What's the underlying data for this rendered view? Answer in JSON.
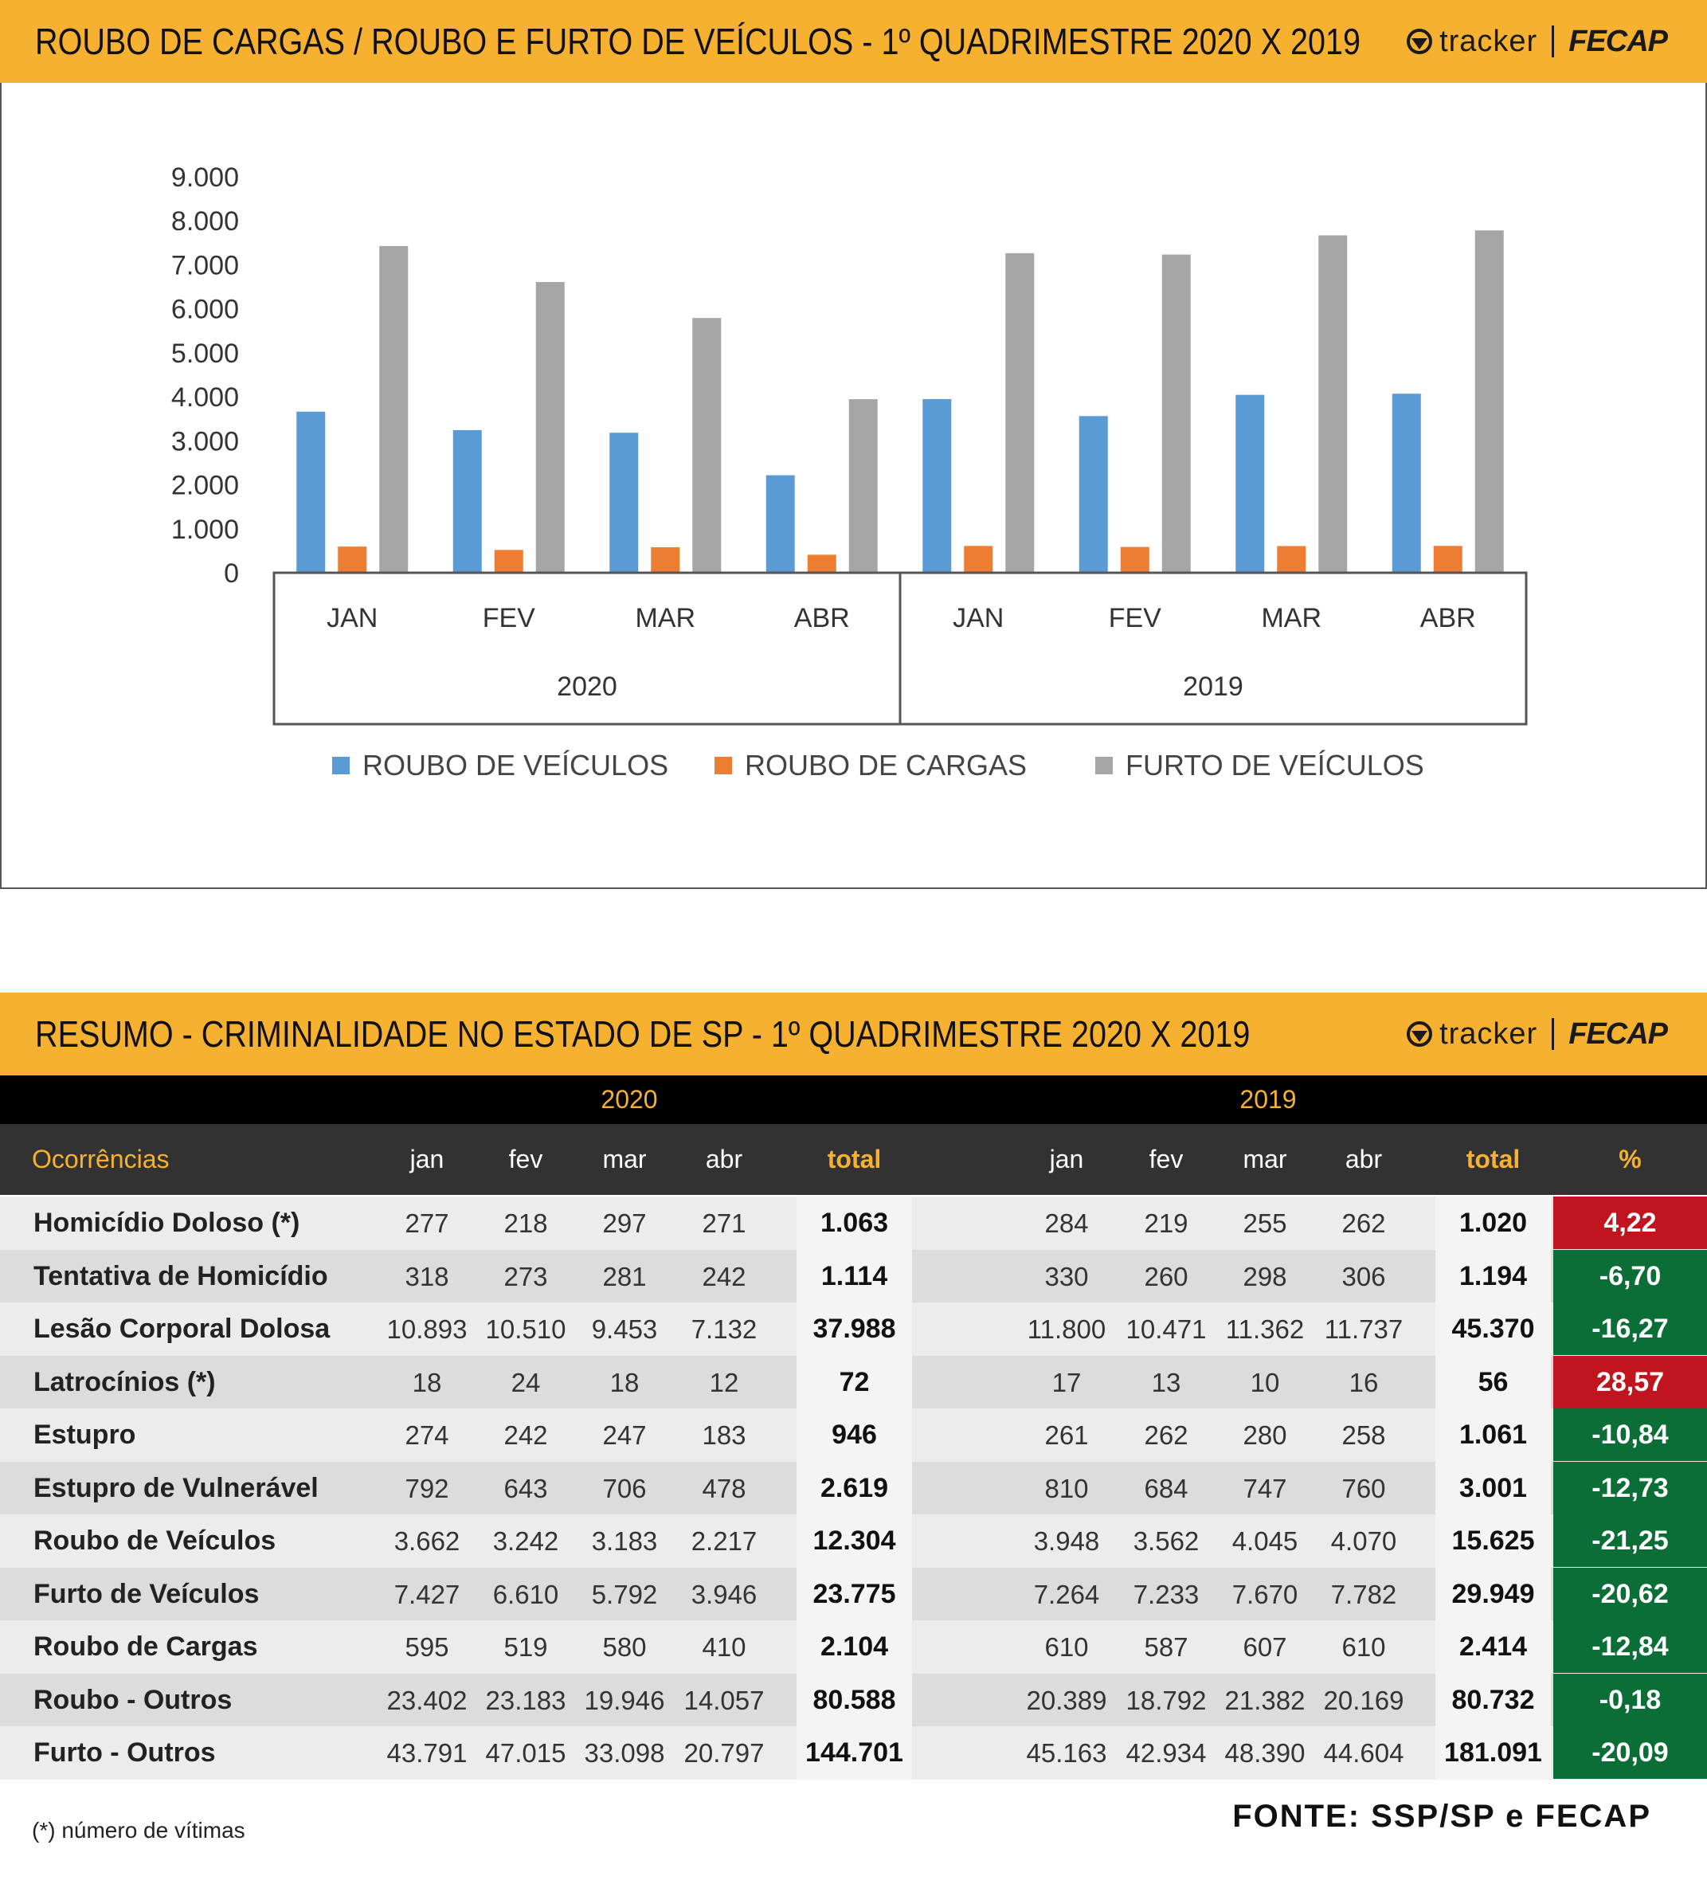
{
  "chart_header": {
    "title": "ROUBO DE CARGAS / ROUBO E FURTO DE VEÍCULOS - 1º QUADRIMESTRE 2020 X 2019",
    "logo_tracker": "tracker",
    "logo_fecap": "FECAP"
  },
  "table_header": {
    "title": "RESUMO - CRIMINALIDADE NO ESTADO DE SP - 1º QUADRIMESTRE 2020 X 2019",
    "logo_tracker": "tracker",
    "logo_fecap": "FECAP"
  },
  "colors": {
    "header_bg": "#f7b131",
    "roubo_veiculos": "#5b9bd5",
    "roubo_cargas": "#ed7d31",
    "furto_veiculos": "#a5a5a5",
    "pct_positive": "#c0151f",
    "pct_negative": "#0b6e36"
  },
  "chart_data": {
    "type": "bar",
    "groups": [
      {
        "label": "2020",
        "categories": [
          "JAN",
          "FEV",
          "MAR",
          "ABR"
        ]
      },
      {
        "label": "2019",
        "categories": [
          "JAN",
          "FEV",
          "MAR",
          "ABR"
        ]
      }
    ],
    "categories": [
      "JAN",
      "FEV",
      "MAR",
      "ABR",
      "JAN",
      "FEV",
      "MAR",
      "ABR"
    ],
    "series": [
      {
        "name": "ROUBO DE VEÍCULOS",
        "color": "#5b9bd5",
        "values": [
          3662,
          3242,
          3183,
          2217,
          3948,
          3562,
          4045,
          4070
        ]
      },
      {
        "name": "ROUBO DE CARGAS",
        "color": "#ed7d31",
        "values": [
          595,
          519,
          580,
          410,
          610,
          587,
          607,
          610
        ]
      },
      {
        "name": "FURTO DE VEÍCULOS",
        "color": "#a5a5a5",
        "values": [
          7427,
          6610,
          5792,
          3946,
          7264,
          7233,
          7670,
          7782
        ]
      }
    ],
    "yticks": [
      "0",
      "1.000",
      "2.000",
      "3.000",
      "4.000",
      "5.000",
      "6.000",
      "7.000",
      "8.000",
      "9.000"
    ],
    "ylim": [
      0,
      9000
    ],
    "legend_position": "bottom",
    "grid": false
  },
  "table": {
    "years": [
      "2020",
      "2019"
    ],
    "columns": {
      "label": "Ocorrências",
      "months": [
        "jan",
        "fev",
        "mar",
        "abr"
      ],
      "total": "total",
      "pct": "%"
    },
    "rows": [
      {
        "name": "Homicídio Doloso (*)",
        "y2020": [
          "277",
          "218",
          "297",
          "271"
        ],
        "t2020": "1.063",
        "y2019": [
          "284",
          "219",
          "255",
          "262"
        ],
        "t2019": "1.020",
        "pct": "4,22",
        "positive": true
      },
      {
        "name": "Tentativa de Homicídio",
        "y2020": [
          "318",
          "273",
          "281",
          "242"
        ],
        "t2020": "1.114",
        "y2019": [
          "330",
          "260",
          "298",
          "306"
        ],
        "t2019": "1.194",
        "pct": "-6,70",
        "positive": false
      },
      {
        "name": "Lesão Corporal Dolosa",
        "y2020": [
          "10.893",
          "10.510",
          "9.453",
          "7.132"
        ],
        "t2020": "37.988",
        "y2019": [
          "11.800",
          "10.471",
          "11.362",
          "11.737"
        ],
        "t2019": "45.370",
        "pct": "-16,27",
        "positive": false
      },
      {
        "name": "Latrocínios (*)",
        "y2020": [
          "18",
          "24",
          "18",
          "12"
        ],
        "t2020": "72",
        "y2019": [
          "17",
          "13",
          "10",
          "16"
        ],
        "t2019": "56",
        "pct": "28,57",
        "positive": true
      },
      {
        "name": "Estupro",
        "y2020": [
          "274",
          "242",
          "247",
          "183"
        ],
        "t2020": "946",
        "y2019": [
          "261",
          "262",
          "280",
          "258"
        ],
        "t2019": "1.061",
        "pct": "-10,84",
        "positive": false
      },
      {
        "name": "Estupro de Vulnerável",
        "y2020": [
          "792",
          "643",
          "706",
          "478"
        ],
        "t2020": "2.619",
        "y2019": [
          "810",
          "684",
          "747",
          "760"
        ],
        "t2019": "3.001",
        "pct": "-12,73",
        "positive": false
      },
      {
        "name": "Roubo de Veículos",
        "y2020": [
          "3.662",
          "3.242",
          "3.183",
          "2.217"
        ],
        "t2020": "12.304",
        "y2019": [
          "3.948",
          "3.562",
          "4.045",
          "4.070"
        ],
        "t2019": "15.625",
        "pct": "-21,25",
        "positive": false
      },
      {
        "name": "Furto de Veículos",
        "y2020": [
          "7.427",
          "6.610",
          "5.792",
          "3.946"
        ],
        "t2020": "23.775",
        "y2019": [
          "7.264",
          "7.233",
          "7.670",
          "7.782"
        ],
        "t2019": "29.949",
        "pct": "-20,62",
        "positive": false
      },
      {
        "name": "Roubo de Cargas",
        "y2020": [
          "595",
          "519",
          "580",
          "410"
        ],
        "t2020": "2.104",
        "y2019": [
          "610",
          "587",
          "607",
          "610"
        ],
        "t2019": "2.414",
        "pct": "-12,84",
        "positive": false
      },
      {
        "name": "Roubo - Outros",
        "y2020": [
          "23.402",
          "23.183",
          "19.946",
          "14.057"
        ],
        "t2020": "80.588",
        "y2019": [
          "20.389",
          "18.792",
          "21.382",
          "20.169"
        ],
        "t2019": "80.732",
        "pct": "-0,18",
        "positive": false
      },
      {
        "name": "Furto - Outros",
        "y2020": [
          "43.791",
          "47.015",
          "33.098",
          "20.797"
        ],
        "t2020": "144.701",
        "y2019": [
          "45.163",
          "42.934",
          "48.390",
          "44.604"
        ],
        "t2019": "181.091",
        "pct": "-20,09",
        "positive": false
      }
    ]
  },
  "footnote": "(*) número de vítimas",
  "source": "FONTE: SSP/SP e FECAP"
}
